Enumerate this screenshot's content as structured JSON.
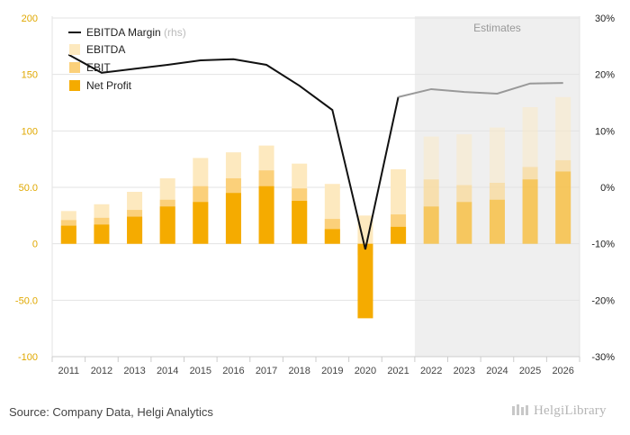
{
  "chart_data": {
    "type": "bar",
    "categories": [
      "2011",
      "2012",
      "2013",
      "2014",
      "2015",
      "2016",
      "2017",
      "2018",
      "2019",
      "2020",
      "2021",
      "2022",
      "2023",
      "2024",
      "2025",
      "2026"
    ],
    "estimate_start_index": 11,
    "estimates_label": "Estimates",
    "series": [
      {
        "name": "EBITDA",
        "kind": "bar",
        "color": "#fde9bf",
        "values": [
          29,
          35,
          46,
          58,
          76,
          81,
          87,
          71,
          53,
          25,
          66,
          95,
          97,
          103,
          121,
          130
        ]
      },
      {
        "name": "EBIT",
        "kind": "bar",
        "color": "#fbd07a",
        "values": [
          21,
          23,
          30,
          39,
          51,
          58,
          65,
          49,
          22,
          -10,
          26,
          57,
          52,
          54,
          68,
          74
        ]
      },
      {
        "name": "Net Profit",
        "kind": "bar",
        "color": "#f5ab00",
        "values": [
          16,
          17,
          24,
          33,
          37,
          45,
          51,
          38,
          13,
          -66,
          15,
          33,
          37,
          39,
          57,
          64
        ]
      },
      {
        "name": "EBITDA Margin",
        "axis": "rhs",
        "kind": "line",
        "color": "#111111",
        "estimate_color": "#999999",
        "values": [
          23.5,
          20.3,
          21.0,
          21.7,
          22.5,
          22.7,
          21.7,
          18.0,
          13.7,
          -11.0,
          16.0,
          17.4,
          16.9,
          16.6,
          18.4,
          18.5
        ]
      }
    ],
    "legend": {
      "line_label": "EBITDA Margin",
      "line_suffix": "(rhs)",
      "placement": "top-left"
    },
    "y_left": {
      "min": -100,
      "max": 200,
      "ticks": [
        "200",
        "150",
        "100",
        "50.0",
        "0",
        "-50.0",
        "-100"
      ]
    },
    "y_right": {
      "min": -30,
      "max": 30,
      "ticks": [
        "30%",
        "20%",
        "10%",
        "0%",
        "-10%",
        "-20%",
        "-30%"
      ]
    },
    "grid": true
  },
  "footer": {
    "source": "Source: Company Data, Helgi Analytics",
    "brand": "HelgiLibrary"
  }
}
